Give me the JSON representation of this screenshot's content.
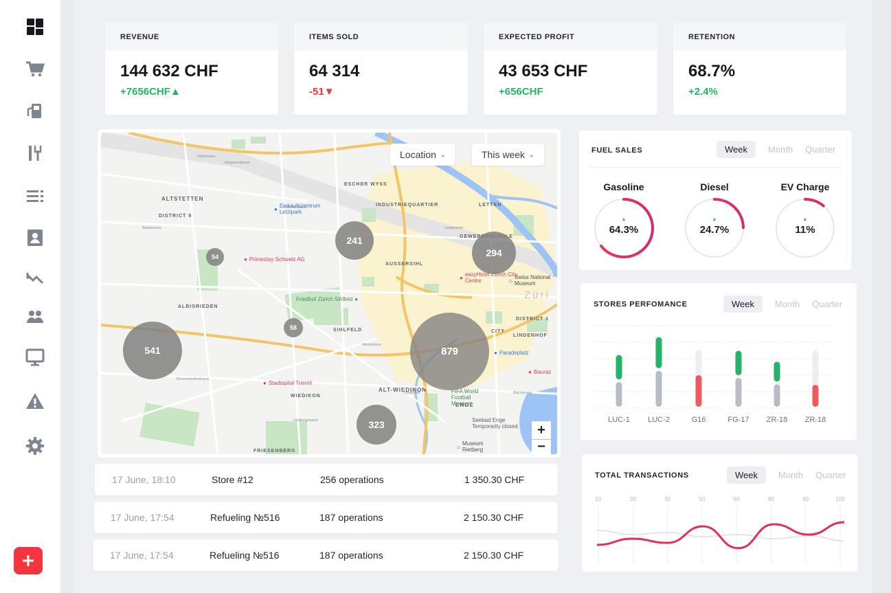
{
  "kpis": [
    {
      "label": "REVENUE",
      "value": "144 632 CHF",
      "delta": "+7656CHF",
      "trend": "up"
    },
    {
      "label": "ITEMS SOLD",
      "value": "64 314",
      "delta": "-51",
      "trend": "down"
    },
    {
      "label": "EXPECTED PROFIT",
      "value": "43 653 CHF",
      "delta": "+656CHF",
      "trend": "up"
    },
    {
      "label": "RETENTION",
      "value": "68.7%",
      "delta": "+2.4%",
      "trend": "up"
    }
  ],
  "sidebar": {
    "icons": [
      "dashboard-icon",
      "cart-icon",
      "fuel-pump-icon",
      "restaurant-icon",
      "list-icon",
      "contact-card-icon",
      "trend-down-icon",
      "users-icon",
      "monitor-icon",
      "warning-icon",
      "gear-icon"
    ],
    "fab": "+"
  },
  "map": {
    "location_label": "Location",
    "period_label": "This week",
    "districts": [
      "ALTSTETTEN",
      "DISTRICT 9",
      "ESCHER WYSS",
      "INDUSTRIEQUARTIER",
      "LETTEN",
      "GEWERBESCHULE",
      "AUSSERSIHL",
      "ALBISRIEDEN",
      "SIHLFELD",
      "CITY",
      "LINDENHOF",
      "DISTRICT 1",
      "ALT-WIEDIKON",
      "WIEDIKON",
      "ENGE",
      "FRIESENBERG",
      "Züri"
    ],
    "pois": [
      "Einkaufszentrum Letzipark",
      "Primestay Schweiz AG",
      "easyHotel Zürich City Centre",
      "Swiss National Museum",
      "Friedhof Zürich Sihlfeld",
      "Stadtspital Triemli",
      "Paradeplatz",
      "FIFA World Football Museum",
      "Seebad Enge Temporarily closed",
      "Museum Rietberg",
      "Bauraz"
    ],
    "clusters": [
      "241",
      "294",
      "54",
      "58",
      "541",
      "879",
      "323"
    ],
    "zoom_in": "+",
    "zoom_out": "−"
  },
  "transactions": [
    {
      "time": "17 June, 18:10",
      "name": "Store #12",
      "ops": "256 operations",
      "amount": "1 350.30 CHF"
    },
    {
      "time": "17 June, 17:54",
      "name": "Refueling №516",
      "ops": "187 operations",
      "amount": "2 150.30 CHF"
    },
    {
      "time": "17 June, 17:54",
      "name": "Refueling №516",
      "ops": "187 operations",
      "amount": "2 150.30 CHF"
    }
  ],
  "fuel_sales": {
    "title": "FUEL SALES",
    "tabs": [
      "Week",
      "Month",
      "Quarter"
    ],
    "active_tab": "Week",
    "items": [
      {
        "name": "Gasoline",
        "value": "64.3%",
        "fraction": 0.643
      },
      {
        "name": "Diesel",
        "value": "24.7%",
        "fraction": 0.247
      },
      {
        "name": "EV Charge",
        "value": "11%",
        "fraction": 0.11
      }
    ]
  },
  "stores": {
    "title": "STORES PERFOMANCE",
    "tabs": [
      "Week",
      "Month",
      "Quarter"
    ],
    "active_tab": "Week",
    "categories": [
      "LUC-1",
      "LUC-2",
      "G16",
      "FG-17",
      "ZR-18",
      "ZR-18"
    ]
  },
  "transactions_chart": {
    "title": "TOTAL TRANSACTIONS",
    "tabs": [
      "Week",
      "Month",
      "Quarter"
    ],
    "active_tab": "Week",
    "x_ticks": [
      "10",
      "20",
      "30",
      "50",
      "60",
      "80",
      "90",
      "100"
    ]
  },
  "chart_data": [
    {
      "type": "bar",
      "title": "STORES PERFOMANCE",
      "categories": [
        "LUC-1",
        "LUC-2",
        "G16",
        "FG-17",
        "ZR-18",
        "ZR-18"
      ],
      "series": [
        {
          "values": [
            0.37,
            0.47,
            0.0,
            0.37,
            0.3,
            0.0
          ],
          "color": "#25b36a"
        },
        {
          "values": [
            0.0,
            0.0,
            0.62,
            0.0,
            0.0,
            0.43
          ],
          "color": "#ef5a5f"
        },
        {
          "values": [
            0.35,
            0.51,
            0.0,
            0.41,
            0.32,
            0.0
          ],
          "color": "#b7bcc6"
        }
      ]
    },
    {
      "type": "line",
      "title": "TOTAL TRANSACTIONS",
      "x": [
        10,
        20,
        30,
        50,
        60,
        80,
        90,
        100
      ],
      "series": [
        {
          "values": [
            0.3,
            0.45,
            0.35,
            0.75,
            0.22,
            0.8,
            0.55,
            0.85
          ],
          "color": "#e52e57"
        },
        {
          "values": [
            0.65,
            0.55,
            0.6,
            0.5,
            0.55,
            0.45,
            0.52,
            0.4
          ],
          "color": "#e2e4e8"
        }
      ]
    }
  ]
}
